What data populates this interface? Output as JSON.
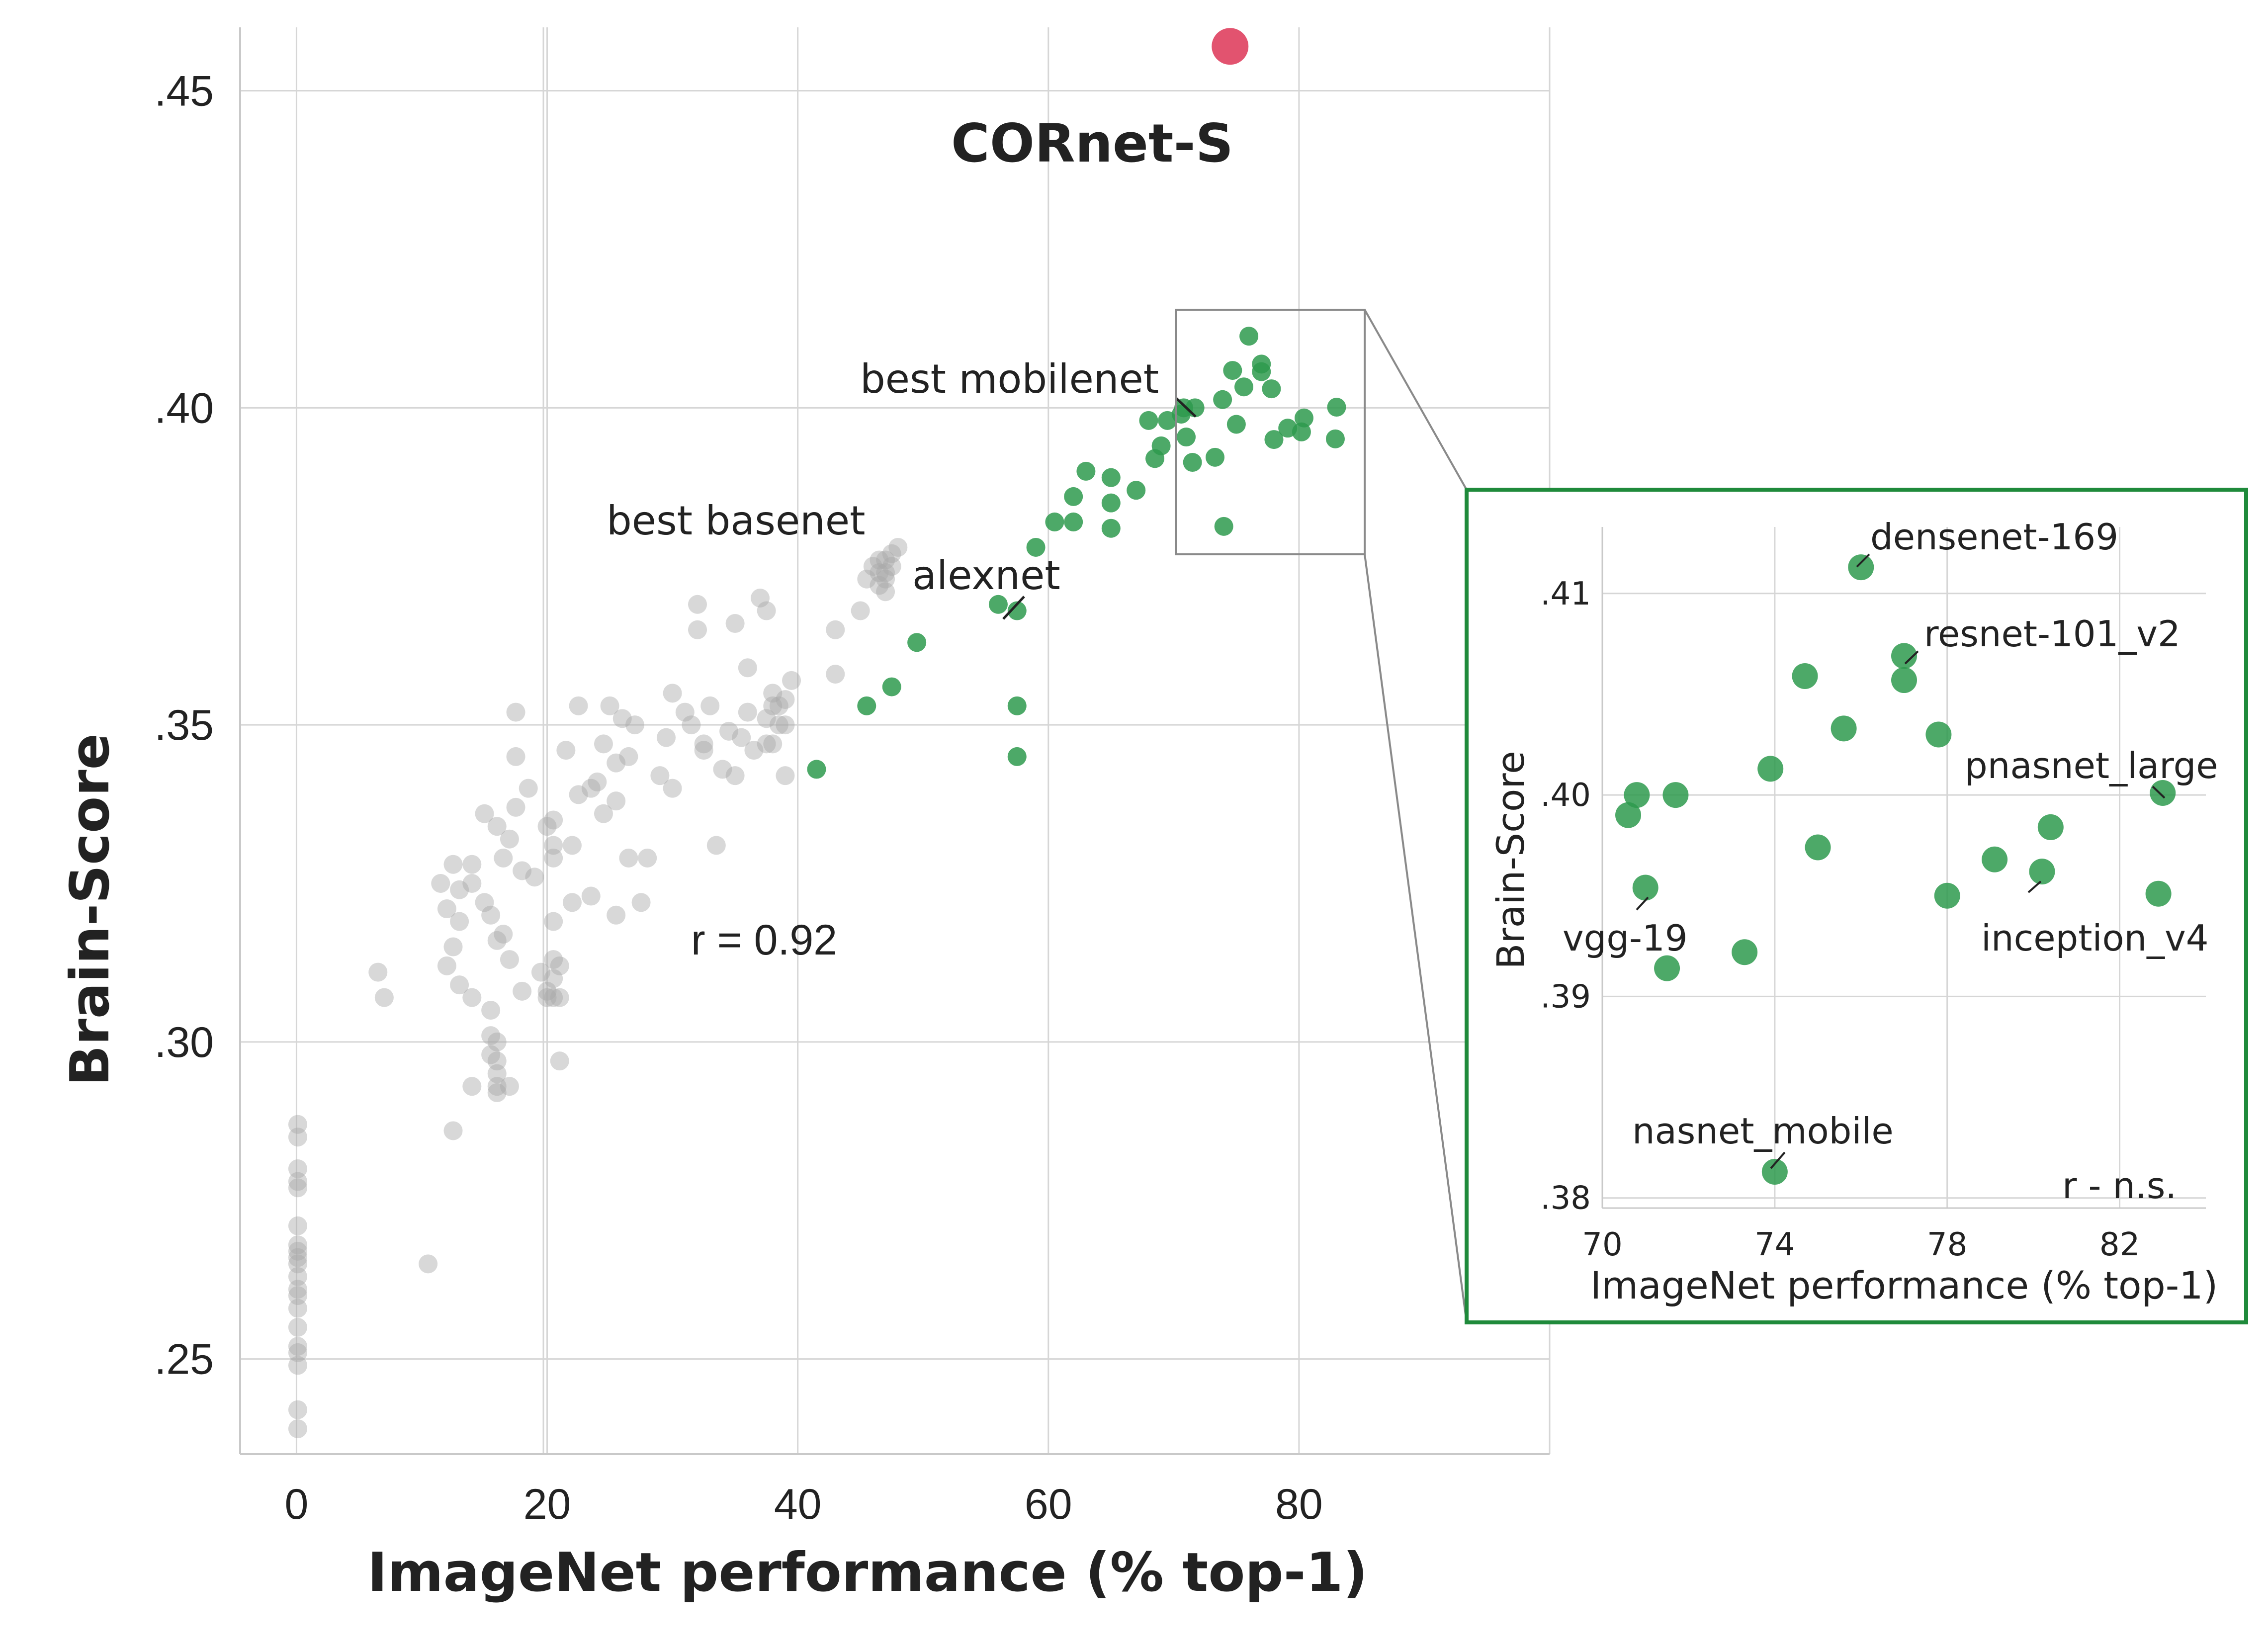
{
  "chart_data": [
    {
      "type": "scatter",
      "xlabel": "ImageNet performance (% top-1)",
      "ylabel": "Brain-Score",
      "xlim": [
        -4.5,
        100
      ],
      "ylim": [
        0.235,
        0.46
      ],
      "x_ticks": [
        0,
        20,
        40,
        60,
        80
      ],
      "x_tick_labels": [
        "0",
        "20",
        "40",
        "60",
        "80"
      ],
      "y_ticks": [
        0.25,
        0.3,
        0.35,
        0.4,
        0.45
      ],
      "y_tick_labels": [
        ".25",
        ".30",
        ".35",
        ".40",
        ".45"
      ],
      "grid": true,
      "colors": {
        "basenets": "#a8a8a8",
        "models": "#2e9a4e",
        "cornet": "#e2536f"
      },
      "series": [
        {
          "color": "#a8a8a8",
          "points": [
            [
              0.1,
              0.287
            ],
            [
              0.1,
              0.285
            ],
            [
              0.1,
              0.28
            ],
            [
              0.1,
              0.278
            ],
            [
              0.1,
              0.277
            ],
            [
              0.1,
              0.271
            ],
            [
              0.1,
              0.268
            ],
            [
              0.1,
              0.267
            ],
            [
              0.1,
              0.266
            ],
            [
              0.1,
              0.265
            ],
            [
              0.1,
              0.263
            ],
            [
              0.1,
              0.261
            ],
            [
              0.1,
              0.26
            ],
            [
              0.1,
              0.258
            ],
            [
              0.1,
              0.255
            ],
            [
              0.1,
              0.252
            ],
            [
              0.1,
              0.251
            ],
            [
              0.1,
              0.249
            ],
            [
              0.1,
              0.242
            ],
            [
              0.1,
              0.239
            ],
            [
              6.5,
              0.311
            ],
            [
              7.0,
              0.307
            ],
            [
              10.5,
              0.265
            ],
            [
              11.5,
              0.325
            ],
            [
              12.0,
              0.321
            ],
            [
              12.0,
              0.312
            ],
            [
              12.5,
              0.328
            ],
            [
              12.5,
              0.315
            ],
            [
              12.5,
              0.286
            ],
            [
              13.0,
              0.324
            ],
            [
              13.0,
              0.319
            ],
            [
              13.0,
              0.309
            ],
            [
              14.0,
              0.328
            ],
            [
              14.0,
              0.325
            ],
            [
              14.0,
              0.307
            ],
            [
              14.0,
              0.293
            ],
            [
              15.0,
              0.322
            ],
            [
              15.0,
              0.336
            ],
            [
              15.5,
              0.32
            ],
            [
              15.5,
              0.305
            ],
            [
              15.5,
              0.301
            ],
            [
              15.5,
              0.298
            ],
            [
              16.0,
              0.316
            ],
            [
              16.0,
              0.3
            ],
            [
              16.0,
              0.297
            ],
            [
              16.0,
              0.295
            ],
            [
              16.0,
              0.293
            ],
            [
              16.0,
              0.292
            ],
            [
              16.0,
              0.334
            ],
            [
              16.5,
              0.317
            ],
            [
              16.5,
              0.329
            ],
            [
              17.0,
              0.332
            ],
            [
              17.0,
              0.313
            ],
            [
              17.0,
              0.293
            ],
            [
              17.5,
              0.345
            ],
            [
              17.5,
              0.337
            ],
            [
              17.5,
              0.352
            ],
            [
              18.0,
              0.327
            ],
            [
              18.0,
              0.308
            ],
            [
              18.5,
              0.34
            ],
            [
              19.0,
              0.326
            ],
            [
              19.5,
              0.311
            ],
            [
              20.0,
              0.307
            ],
            [
              20.0,
              0.308
            ],
            [
              20.0,
              0.334
            ],
            [
              20.5,
              0.335
            ],
            [
              20.5,
              0.331
            ],
            [
              20.5,
              0.329
            ],
            [
              20.5,
              0.319
            ],
            [
              20.5,
              0.313
            ],
            [
              20.5,
              0.31
            ],
            [
              20.5,
              0.307
            ],
            [
              21.0,
              0.312
            ],
            [
              21.0,
              0.307
            ],
            [
              21.0,
              0.297
            ],
            [
              21.5,
              0.346
            ],
            [
              22.0,
              0.322
            ],
            [
              22.0,
              0.331
            ],
            [
              22.5,
              0.339
            ],
            [
              22.5,
              0.353
            ],
            [
              23.5,
              0.34
            ],
            [
              23.5,
              0.323
            ],
            [
              24.0,
              0.341
            ],
            [
              24.5,
              0.336
            ],
            [
              24.5,
              0.347
            ],
            [
              25.0,
              0.353
            ],
            [
              25.5,
              0.32
            ],
            [
              25.5,
              0.338
            ],
            [
              25.5,
              0.344
            ],
            [
              26.0,
              0.351
            ],
            [
              26.5,
              0.329
            ],
            [
              26.5,
              0.345
            ],
            [
              27.0,
              0.35
            ],
            [
              27.5,
              0.322
            ],
            [
              28.0,
              0.329
            ],
            [
              29.0,
              0.342
            ],
            [
              29.5,
              0.348
            ],
            [
              30.0,
              0.355
            ],
            [
              30.0,
              0.34
            ],
            [
              31.0,
              0.352
            ],
            [
              31.5,
              0.35
            ],
            [
              32.0,
              0.365
            ],
            [
              32.0,
              0.369
            ],
            [
              32.5,
              0.347
            ],
            [
              32.5,
              0.346
            ],
            [
              33.0,
              0.353
            ],
            [
              33.5,
              0.331
            ],
            [
              34.0,
              0.343
            ],
            [
              34.5,
              0.349
            ],
            [
              35.0,
              0.342
            ],
            [
              35.0,
              0.366
            ],
            [
              35.5,
              0.348
            ],
            [
              36.0,
              0.359
            ],
            [
              36.0,
              0.352
            ],
            [
              36.5,
              0.346
            ],
            [
              37.0,
              0.37
            ],
            [
              37.5,
              0.368
            ],
            [
              37.5,
              0.351
            ],
            [
              37.5,
              0.347
            ],
            [
              38.0,
              0.355
            ],
            [
              38.0,
              0.353
            ],
            [
              38.0,
              0.347
            ],
            [
              38.5,
              0.353
            ],
            [
              38.5,
              0.35
            ],
            [
              39.0,
              0.354
            ],
            [
              39.0,
              0.342
            ],
            [
              39.0,
              0.35
            ],
            [
              39.5,
              0.357
            ],
            [
              43.0,
              0.358
            ],
            [
              43.0,
              0.365
            ],
            [
              45.0,
              0.368
            ],
            [
              45.5,
              0.373
            ],
            [
              46.0,
              0.375
            ],
            [
              46.5,
              0.376
            ],
            [
              46.5,
              0.372
            ],
            [
              46.5,
              0.374
            ],
            [
              47.0,
              0.376
            ],
            [
              47.0,
              0.373
            ],
            [
              47.0,
              0.371
            ],
            [
              47.0,
              0.374
            ],
            [
              47.5,
              0.377
            ],
            [
              47.5,
              0.375
            ],
            [
              48.0,
              0.378
            ]
          ]
        },
        {
          "color": "#2e9a4e",
          "points": [
            [
              41.5,
              0.343
            ],
            [
              45.5,
              0.353
            ],
            [
              47.5,
              0.356
            ],
            [
              49.5,
              0.363
            ],
            [
              56.0,
              0.369
            ],
            [
              57.5,
              0.368
            ],
            [
              57.5,
              0.353
            ],
            [
              57.5,
              0.345
            ],
            [
              59.0,
              0.378
            ],
            [
              60.5,
              0.382
            ],
            [
              62.0,
              0.386
            ],
            [
              62.0,
              0.382
            ],
            [
              63.0,
              0.39
            ],
            [
              65.0,
              0.389
            ],
            [
              65.0,
              0.385
            ],
            [
              65.0,
              0.381
            ],
            [
              67.0,
              0.387
            ],
            [
              68.0,
              0.398
            ],
            [
              68.5,
              0.392
            ],
            [
              69.0,
              0.394
            ],
            [
              69.5,
              0.398
            ],
            [
              70.6,
              0.399
            ],
            [
              70.8,
              0.4
            ],
            [
              71.0,
              0.3954
            ],
            [
              71.5,
              0.3914
            ],
            [
              71.7,
              0.4
            ],
            [
              73.3,
              0.3922
            ],
            [
              73.9,
              0.4013
            ],
            [
              74.0,
              0.3813
            ],
            [
              74.7,
              0.4059
            ],
            [
              75.0,
              0.3974
            ],
            [
              75.6,
              0.4033
            ],
            [
              76.0,
              0.4113
            ],
            [
              77.0,
              0.4069
            ],
            [
              77.0,
              0.4057
            ],
            [
              77.8,
              0.403
            ],
            [
              78.0,
              0.395
            ],
            [
              79.1,
              0.3968
            ],
            [
              80.2,
              0.3962
            ],
            [
              80.4,
              0.3984
            ],
            [
              82.9,
              0.3951
            ],
            [
              83.0,
              0.4001
            ]
          ]
        },
        {
          "name": "CORnet-S",
          "color": "#e2536f",
          "points": [
            [
              74.5,
              0.457
            ]
          ]
        }
      ],
      "annotations": [
        {
          "text": "CORnet-S",
          "x": 74.5,
          "y": 0.457
        },
        {
          "text": "best mobilenet",
          "x": 71.5,
          "y": 0.4
        },
        {
          "text": "best basenet",
          "x": 47.0,
          "y": 0.375
        },
        {
          "text": "alexnet",
          "x": 57.5,
          "y": 0.368
        },
        {
          "text": "r = 0.92"
        }
      ]
    },
    {
      "type": "scatter",
      "xlabel": "ImageNet performance (% top-1)",
      "ylabel": "Brain-Score",
      "xlim": [
        70,
        84
      ],
      "ylim": [
        0.3795,
        0.4133
      ],
      "x_ticks": [
        70,
        74,
        78,
        82
      ],
      "x_tick_labels": [
        "70",
        "74",
        "78",
        "82"
      ],
      "y_ticks": [
        0.38,
        0.39,
        0.4,
        0.41
      ],
      "y_tick_labels": [
        ".38",
        ".39",
        ".40",
        ".41"
      ],
      "grid": true,
      "colors": {
        "models": "#2e9a4e",
        "border": "#1f8a3b"
      },
      "series": [
        {
          "color": "#2e9a4e",
          "points": [
            [
              70.6,
              0.399
            ],
            [
              70.8,
              0.4
            ],
            [
              71.0,
              0.3954
            ],
            [
              71.5,
              0.3914
            ],
            [
              71.7,
              0.4
            ],
            [
              73.3,
              0.3922
            ],
            [
              73.9,
              0.4013
            ],
            [
              74.0,
              0.3813
            ],
            [
              74.7,
              0.4059
            ],
            [
              75.0,
              0.3974
            ],
            [
              75.6,
              0.4033
            ],
            [
              76.0,
              0.4113
            ],
            [
              77.0,
              0.4069
            ],
            [
              77.0,
              0.4057
            ],
            [
              77.8,
              0.403
            ],
            [
              78.0,
              0.395
            ],
            [
              79.1,
              0.3968
            ],
            [
              80.2,
              0.3962
            ],
            [
              80.4,
              0.3984
            ],
            [
              82.9,
              0.3951
            ],
            [
              83.0,
              0.4001
            ]
          ]
        }
      ],
      "annotations": [
        {
          "text": "densenet-169",
          "x": 76.0,
          "y": 0.4113
        },
        {
          "text": "resnet-101_v2",
          "x": 77.0,
          "y": 0.4069
        },
        {
          "text": "pnasnet_large",
          "x": 83.0,
          "y": 0.4001
        },
        {
          "text": "vgg-19",
          "x": 71.0,
          "y": 0.3954
        },
        {
          "text": "inception_v4",
          "x": 80.2,
          "y": 0.3962
        },
        {
          "text": "nasnet_mobile",
          "x": 74.0,
          "y": 0.3813
        },
        {
          "text": "r - n.s."
        }
      ]
    }
  ]
}
